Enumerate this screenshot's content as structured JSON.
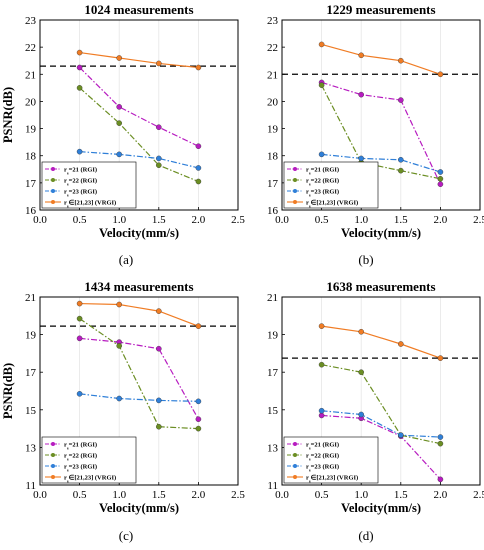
{
  "chart_data": [
    {
      "type": "line",
      "title": "1024 measurements",
      "xlabel": "Velocity(mm/s)",
      "ylabel": "PSNR(dB)",
      "xlim": [
        0.0,
        2.5
      ],
      "ylim": [
        16,
        23
      ],
      "xticks": [
        "0.0",
        "0.5",
        "1.0",
        "1.5",
        "2.0",
        "2.5"
      ],
      "yticks": [
        "16",
        "17",
        "18",
        "19",
        "20",
        "21",
        "22",
        "23"
      ],
      "x": [
        0.5,
        1.0,
        1.5,
        2.0
      ],
      "reference_line": 21.3,
      "caption": "(a)",
      "series": [
        {
          "name": "r_s=21 (RGI)",
          "color": "#b71cc0",
          "dash": "dashdot",
          "values": [
            21.25,
            19.8,
            19.05,
            18.35
          ]
        },
        {
          "name": "r_s=22 (RGI)",
          "color": "#6b8e23",
          "dash": "dashdot",
          "values": [
            20.5,
            19.2,
            17.65,
            17.05
          ]
        },
        {
          "name": "r_s=23 (RGI)",
          "color": "#2f7fd8",
          "dash": "dashdot",
          "values": [
            18.15,
            18.05,
            17.9,
            17.55
          ]
        },
        {
          "name": "r_s∈[21,23] (VRGI)",
          "color": "#f07c24",
          "dash": "solid",
          "values": [
            21.8,
            21.6,
            21.4,
            21.25
          ]
        }
      ]
    },
    {
      "type": "line",
      "title": "1229 measurements",
      "xlabel": "Velocity(mm/s)",
      "ylabel": "",
      "xlim": [
        0.0,
        2.5
      ],
      "ylim": [
        16,
        23
      ],
      "xticks": [
        "0.0",
        "0.5",
        "1.0",
        "1.5",
        "2.0",
        "2.5"
      ],
      "yticks": [
        "16",
        "17",
        "18",
        "19",
        "20",
        "21",
        "22",
        "23"
      ],
      "x": [
        0.5,
        1.0,
        1.5,
        2.0
      ],
      "reference_line": 21.0,
      "caption": "(b)",
      "series": [
        {
          "name": "r_s=21 (RGI)",
          "color": "#b71cc0",
          "dash": "dashdot",
          "values": [
            20.7,
            20.25,
            20.05,
            16.95
          ]
        },
        {
          "name": "r_s=22 (RGI)",
          "color": "#6b8e23",
          "dash": "dashdot",
          "values": [
            20.6,
            17.75,
            17.45,
            17.15
          ]
        },
        {
          "name": "r_s=23 (RGI)",
          "color": "#2f7fd8",
          "dash": "dashdot",
          "values": [
            18.05,
            17.9,
            17.85,
            17.4
          ]
        },
        {
          "name": "r_s∈[21,23] (VRGI)",
          "color": "#f07c24",
          "dash": "solid",
          "values": [
            22.1,
            21.7,
            21.5,
            21.0
          ]
        }
      ]
    },
    {
      "type": "line",
      "title": "1434 measurements",
      "xlabel": "Velocity(mm/s)",
      "ylabel": "PSNR(dB)",
      "xlim": [
        0.0,
        2.5
      ],
      "ylim": [
        11,
        21
      ],
      "xticks": [
        "0.0",
        "0.5",
        "1.0",
        "1.5",
        "2.0",
        "2.5"
      ],
      "yticks": [
        "11",
        "13",
        "15",
        "17",
        "19",
        "21"
      ],
      "x": [
        0.5,
        1.0,
        1.5,
        2.0
      ],
      "reference_line": 19.45,
      "caption": "(c)",
      "series": [
        {
          "name": "r_s=21 (RGI)",
          "color": "#b71cc0",
          "dash": "dashdot",
          "values": [
            18.8,
            18.6,
            18.25,
            14.5
          ]
        },
        {
          "name": "r_s=22 (RGI)",
          "color": "#6b8e23",
          "dash": "dashdot",
          "values": [
            19.85,
            18.4,
            14.1,
            14.0
          ]
        },
        {
          "name": "r_s=23 (RGI)",
          "color": "#2f7fd8",
          "dash": "dashdot",
          "values": [
            15.85,
            15.6,
            15.5,
            15.45
          ]
        },
        {
          "name": "r_s∈[21,23] (VRGI)",
          "color": "#f07c24",
          "dash": "solid",
          "values": [
            20.65,
            20.6,
            20.25,
            19.45
          ]
        }
      ]
    },
    {
      "type": "line",
      "title": "1638 measurements",
      "xlabel": "Velocity(mm/s)",
      "ylabel": "",
      "xlim": [
        0.0,
        2.5
      ],
      "ylim": [
        11,
        21
      ],
      "xticks": [
        "0.0",
        "0.5",
        "1.0",
        "1.5",
        "2.0",
        "2.5"
      ],
      "yticks": [
        "11",
        "13",
        "15",
        "17",
        "19",
        "21"
      ],
      "x": [
        0.5,
        1.0,
        1.5,
        2.0
      ],
      "reference_line": 17.75,
      "caption": "(d)",
      "series": [
        {
          "name": "r_s=21 (RGI)",
          "color": "#b71cc0",
          "dash": "dashdot",
          "values": [
            14.7,
            14.55,
            13.6,
            11.3
          ]
        },
        {
          "name": "r_s=22 (RGI)",
          "color": "#6b8e23",
          "dash": "dashdot",
          "values": [
            17.4,
            17.0,
            13.65,
            13.2
          ]
        },
        {
          "name": "r_s=23 (RGI)",
          "color": "#2f7fd8",
          "dash": "dashdot",
          "values": [
            14.95,
            14.75,
            13.65,
            13.55
          ]
        },
        {
          "name": "r_s∈[21,23] (VRGI)",
          "color": "#f07c24",
          "dash": "solid",
          "values": [
            19.45,
            19.15,
            18.5,
            17.75
          ]
        }
      ]
    }
  ]
}
